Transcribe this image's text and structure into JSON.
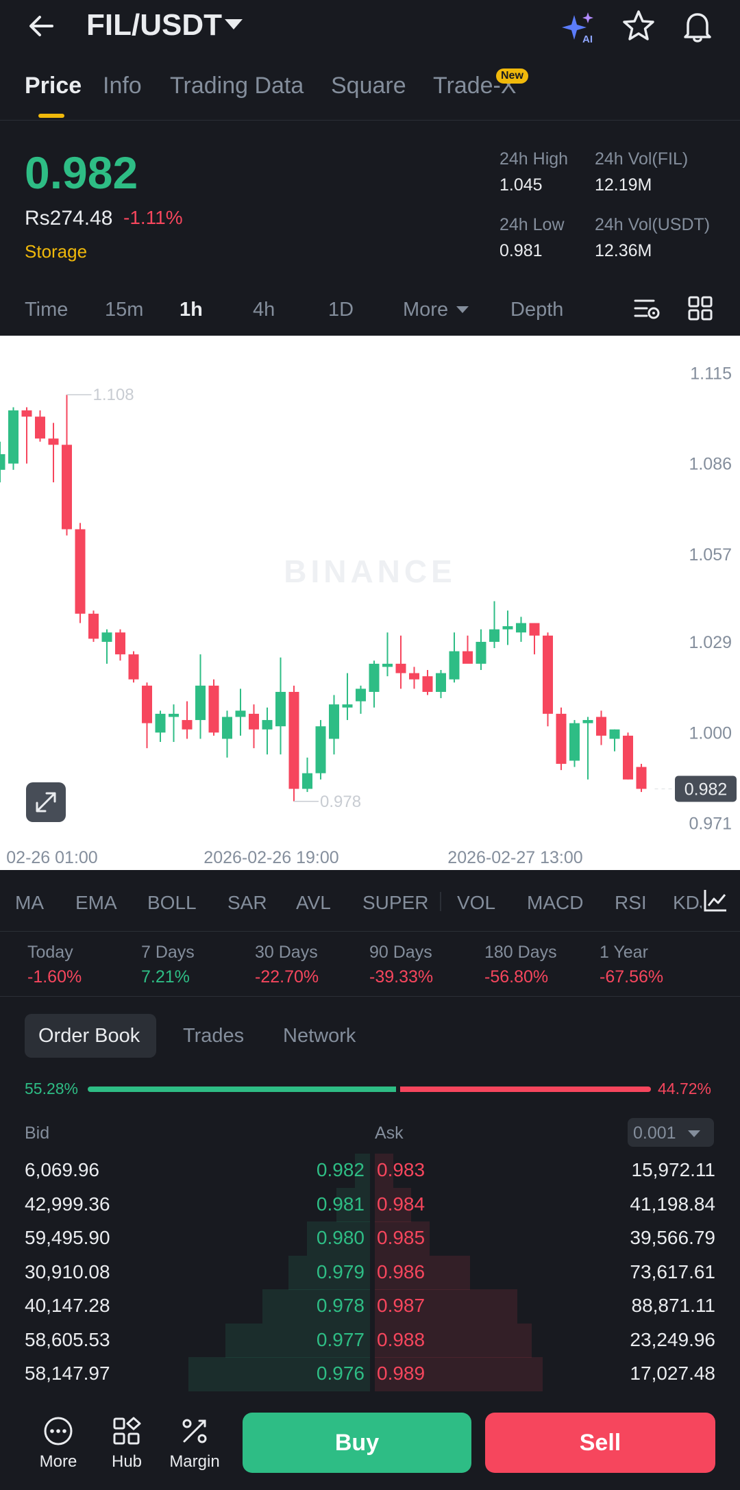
{
  "header": {
    "pair": "FIL/USDT",
    "icons": [
      "back-arrow-icon",
      "ai-sparkle-icon",
      "star-icon",
      "bell-icon"
    ]
  },
  "tabs": [
    {
      "label": "Price",
      "active": true
    },
    {
      "label": "Info",
      "active": false
    },
    {
      "label": "Trading Data",
      "active": false
    },
    {
      "label": "Square",
      "active": false
    },
    {
      "label": "Trade-X",
      "active": false,
      "badge": "New"
    }
  ],
  "ticker": {
    "last_price": "0.982",
    "fiat_price": "Rs274.48",
    "change_pct": "-1.11%",
    "sector": "Storage",
    "stats": {
      "high_label": "24h High",
      "high_value": "1.045",
      "vol_base_label": "24h Vol(FIL)",
      "vol_base_value": "12.19M",
      "low_label": "24h Low",
      "low_value": "0.981",
      "vol_quote_label": "24h Vol(USDT)",
      "vol_quote_value": "12.36M"
    }
  },
  "intervals": [
    {
      "label": "Time",
      "active": false
    },
    {
      "label": "15m",
      "active": false
    },
    {
      "label": "1h",
      "active": true
    },
    {
      "label": "4h",
      "active": false
    },
    {
      "label": "1D",
      "active": false
    },
    {
      "label": "More",
      "active": false
    },
    {
      "label": "Depth",
      "active": false
    }
  ],
  "chart_data": {
    "type": "candlestick",
    "interval": "1h",
    "y_axis_labels": [
      "1.115",
      "1.086",
      "1.057",
      "1.029",
      "1.000",
      "0.971"
    ],
    "ylim": [
      0.967,
      1.119
    ],
    "x_axis_labels": [
      "02-26 01:00",
      "2026-02-26 19:00",
      "2026-02-27 13:00"
    ],
    "annotations": {
      "high": "1.108",
      "low": "0.978",
      "last": "0.982"
    },
    "watermark": "BINANCE",
    "up_color": "#2ebd85",
    "down_color": "#f6465d",
    "candles": [
      {
        "o": 1.084,
        "h": 1.093,
        "l": 1.08,
        "c": 1.089
      },
      {
        "o": 1.086,
        "h": 1.104,
        "l": 1.084,
        "c": 1.103
      },
      {
        "o": 1.103,
        "h": 1.104,
        "l": 1.086,
        "c": 1.101
      },
      {
        "o": 1.101,
        "h": 1.103,
        "l": 1.093,
        "c": 1.094
      },
      {
        "o": 1.094,
        "h": 1.099,
        "l": 1.08,
        "c": 1.092
      },
      {
        "o": 1.092,
        "h": 1.108,
        "l": 1.063,
        "c": 1.065
      },
      {
        "o": 1.065,
        "h": 1.067,
        "l": 1.035,
        "c": 1.038
      },
      {
        "o": 1.038,
        "h": 1.039,
        "l": 1.029,
        "c": 1.03
      },
      {
        "o": 1.029,
        "h": 1.033,
        "l": 1.022,
        "c": 1.032
      },
      {
        "o": 1.032,
        "h": 1.033,
        "l": 1.023,
        "c": 1.025
      },
      {
        "o": 1.025,
        "h": 1.026,
        "l": 1.016,
        "c": 1.017
      },
      {
        "o": 1.015,
        "h": 1.016,
        "l": 0.995,
        "c": 1.003
      },
      {
        "o": 1.0,
        "h": 1.007,
        "l": 0.997,
        "c": 1.006
      },
      {
        "o": 1.005,
        "h": 1.009,
        "l": 0.997,
        "c": 1.006
      },
      {
        "o": 1.004,
        "h": 1.01,
        "l": 0.998,
        "c": 1.001
      },
      {
        "o": 1.004,
        "h": 1.025,
        "l": 0.998,
        "c": 1.015
      },
      {
        "o": 1.015,
        "h": 1.017,
        "l": 0.999,
        "c": 1.0
      },
      {
        "o": 0.998,
        "h": 1.007,
        "l": 0.992,
        "c": 1.005
      },
      {
        "o": 1.005,
        "h": 1.014,
        "l": 0.999,
        "c": 1.007
      },
      {
        "o": 1.006,
        "h": 1.009,
        "l": 0.995,
        "c": 1.001
      },
      {
        "o": 1.001,
        "h": 1.008,
        "l": 0.993,
        "c": 1.004
      },
      {
        "o": 1.002,
        "h": 1.024,
        "l": 0.993,
        "c": 1.013
      },
      {
        "o": 1.013,
        "h": 1.015,
        "l": 0.978,
        "c": 0.982
      },
      {
        "o": 0.982,
        "h": 0.992,
        "l": 0.981,
        "c": 0.987
      },
      {
        "o": 0.987,
        "h": 1.004,
        "l": 0.985,
        "c": 1.002
      },
      {
        "o": 0.998,
        "h": 1.012,
        "l": 0.993,
        "c": 1.009
      },
      {
        "o": 1.008,
        "h": 1.019,
        "l": 1.004,
        "c": 1.009
      },
      {
        "o": 1.01,
        "h": 1.015,
        "l": 1.006,
        "c": 1.014
      },
      {
        "o": 1.013,
        "h": 1.023,
        "l": 1.008,
        "c": 1.022
      },
      {
        "o": 1.021,
        "h": 1.032,
        "l": 1.018,
        "c": 1.022
      },
      {
        "o": 1.022,
        "h": 1.031,
        "l": 1.014,
        "c": 1.019
      },
      {
        "o": 1.019,
        "h": 1.021,
        "l": 1.014,
        "c": 1.017
      },
      {
        "o": 1.018,
        "h": 1.02,
        "l": 1.012,
        "c": 1.013
      },
      {
        "o": 1.013,
        "h": 1.02,
        "l": 1.011,
        "c": 1.019
      },
      {
        "o": 1.017,
        "h": 1.032,
        "l": 1.016,
        "c": 1.026
      },
      {
        "o": 1.026,
        "h": 1.031,
        "l": 1.023,
        "c": 1.022
      },
      {
        "o": 1.022,
        "h": 1.033,
        "l": 1.02,
        "c": 1.029
      },
      {
        "o": 1.029,
        "h": 1.042,
        "l": 1.027,
        "c": 1.033
      },
      {
        "o": 1.033,
        "h": 1.039,
        "l": 1.028,
        "c": 1.034
      },
      {
        "o": 1.032,
        "h": 1.037,
        "l": 1.029,
        "c": 1.035
      },
      {
        "o": 1.035,
        "h": 1.035,
        "l": 1.025,
        "c": 1.031
      },
      {
        "o": 1.031,
        "h": 1.032,
        "l": 1.002,
        "c": 1.006
      },
      {
        "o": 1.006,
        "h": 1.008,
        "l": 0.988,
        "c": 0.99
      },
      {
        "o": 0.991,
        "h": 1.004,
        "l": 0.989,
        "c": 1.003
      },
      {
        "o": 1.003,
        "h": 1.005,
        "l": 0.985,
        "c": 1.004
      },
      {
        "o": 1.005,
        "h": 1.007,
        "l": 0.996,
        "c": 0.999
      },
      {
        "o": 0.998,
        "h": 1.001,
        "l": 0.994,
        "c": 1.001
      },
      {
        "o": 0.999,
        "h": 1.0,
        "l": 0.985,
        "c": 0.985
      },
      {
        "o": 0.989,
        "h": 0.99,
        "l": 0.981,
        "c": 0.982
      }
    ]
  },
  "indicators": [
    "MA",
    "EMA",
    "BOLL",
    "SAR",
    "AVL",
    "SUPER",
    "VOL",
    "MACD",
    "RSI",
    "KDJ"
  ],
  "performance": [
    {
      "label": "Today",
      "value": "-1.60%",
      "up": false
    },
    {
      "label": "7 Days",
      "value": "7.21%",
      "up": true
    },
    {
      "label": "30 Days",
      "value": "-22.70%",
      "up": false
    },
    {
      "label": "90 Days",
      "value": "-39.33%",
      "up": false
    },
    {
      "label": "180 Days",
      "value": "-56.80%",
      "up": false
    },
    {
      "label": "1 Year",
      "value": "-67.56%",
      "up": false
    }
  ],
  "orderbook": {
    "tabs": [
      {
        "label": "Order Book",
        "active": true
      },
      {
        "label": "Trades",
        "active": false
      },
      {
        "label": "Network",
        "active": false
      }
    ],
    "bid_ratio": "55.28%",
    "ask_ratio": "44.72%",
    "bid_ratio_value": 0.5528,
    "bid_header": "Bid",
    "ask_header": "Ask",
    "precision": "0.001",
    "rows": [
      {
        "bid_qty": "6,069.96",
        "bid_price": "0.982",
        "ask_price": "0.983",
        "ask_qty": "15,972.11",
        "bid_depth": 0.04,
        "ask_depth": 0.05
      },
      {
        "bid_qty": "42,999.36",
        "bid_price": "0.981",
        "ask_price": "0.984",
        "ask_qty": "41,198.84",
        "bid_depth": 0.09,
        "ask_depth": 0.1
      },
      {
        "bid_qty": "59,495.90",
        "bid_price": "0.980",
        "ask_price": "0.985",
        "ask_qty": "39,566.79",
        "bid_depth": 0.17,
        "ask_depth": 0.15
      },
      {
        "bid_qty": "30,910.08",
        "bid_price": "0.979",
        "ask_price": "0.986",
        "ask_qty": "73,617.61",
        "bid_depth": 0.22,
        "ask_depth": 0.26
      },
      {
        "bid_qty": "40,147.28",
        "bid_price": "0.978",
        "ask_price": "0.987",
        "ask_qty": "88,871.11",
        "bid_depth": 0.29,
        "ask_depth": 0.39
      },
      {
        "bid_qty": "58,605.53",
        "bid_price": "0.977",
        "ask_price": "0.988",
        "ask_qty": "23,249.96",
        "bid_depth": 0.39,
        "ask_depth": 0.43
      },
      {
        "bid_qty": "58,147.97",
        "bid_price": "0.976",
        "ask_price": "0.989",
        "ask_qty": "17,027.48",
        "bid_depth": 0.49,
        "ask_depth": 0.46
      }
    ]
  },
  "bottom_bar": {
    "more": "More",
    "hub": "Hub",
    "margin": "Margin",
    "buy": "Buy",
    "sell": "Sell"
  }
}
